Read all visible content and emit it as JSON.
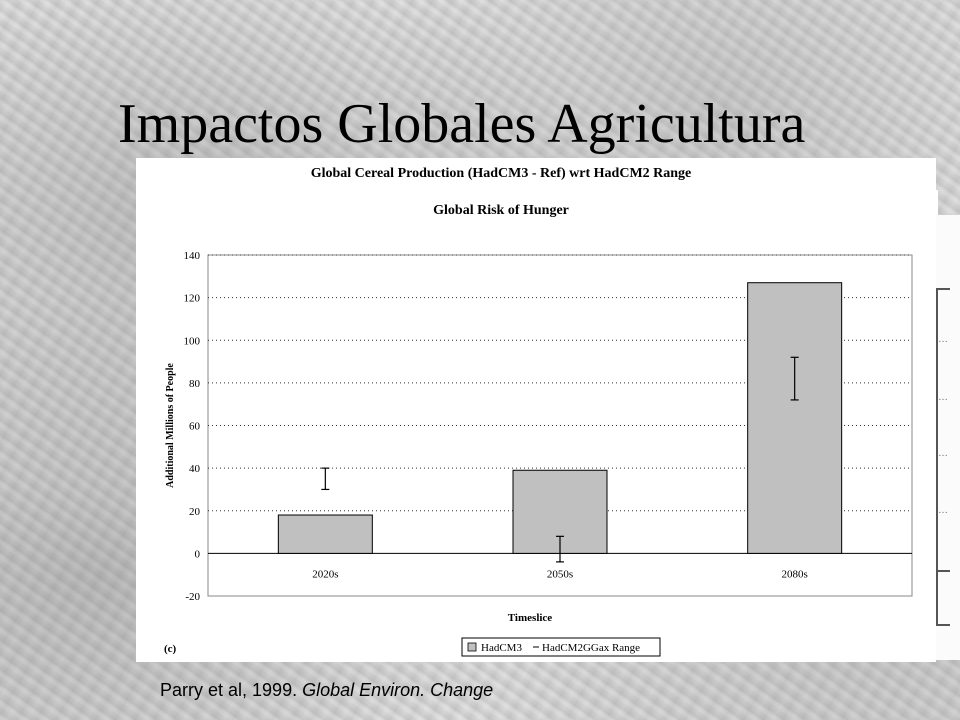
{
  "slide": {
    "title": "Impactos Globales Agricultura",
    "citation_prefix": "Parry et al, 1999. ",
    "citation_journal": "Global Environ. Change"
  },
  "overlay": {
    "header_1": "Global Cereal Production (HadCM3 - Ref) wrt HadCM2 Range"
  },
  "chart_data": {
    "type": "bar",
    "title": "Global Risk of Hunger",
    "panel_label": "(c)",
    "xlabel": "Timeslice",
    "ylabel": "Additional Millions of People",
    "categories": [
      "2020s",
      "2050s",
      "2080s"
    ],
    "series": [
      {
        "name": "HadCM3",
        "values": [
          18,
          39,
          127
        ]
      }
    ],
    "range_series": {
      "name": "HadCM2GGax Range",
      "low": [
        30,
        -4,
        72
      ],
      "high": [
        40,
        8,
        92
      ]
    },
    "ylim": [
      -20,
      140
    ],
    "yticks": [
      -20,
      0,
      20,
      40,
      60,
      80,
      100,
      120,
      140
    ],
    "grid": true,
    "legend_position": "bottom-right",
    "colors": {
      "bar": "#c0c0c0",
      "bar_stroke": "#000000",
      "grid": "#333333"
    }
  }
}
